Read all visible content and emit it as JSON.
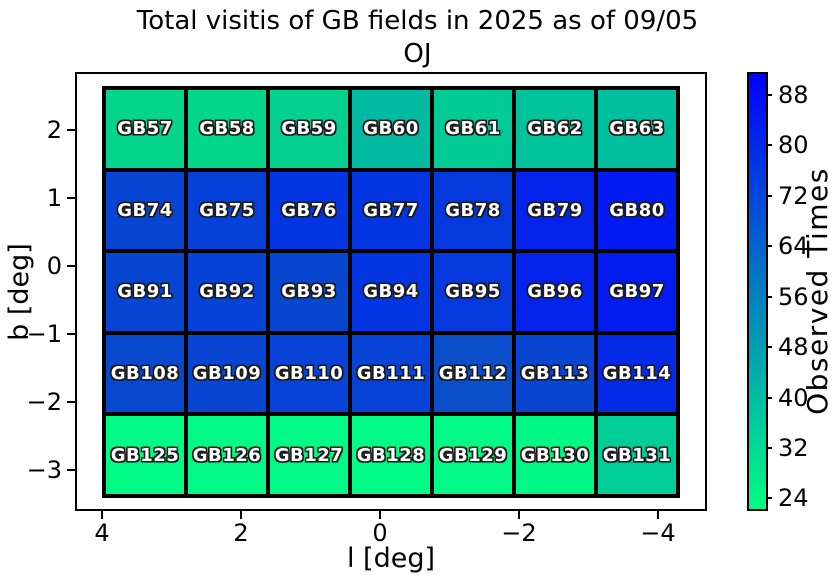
{
  "title": {
    "line1": "Total visitis of GB fields in 2025 as of 09/05",
    "line2": "OJ"
  },
  "axes": {
    "xlabel": "l [deg]",
    "ylabel": "b [deg]",
    "xticks": [
      "4",
      "2",
      "0",
      "−2",
      "−4"
    ],
    "yticks": [
      "2",
      "1",
      "0",
      "−1",
      "−2",
      "−3"
    ]
  },
  "colorbar": {
    "label": "Observed Times",
    "ticks": [
      "88",
      "80",
      "72",
      "64",
      "56",
      "48",
      "40",
      "32",
      "24"
    ],
    "top_color": "#0000fe",
    "bottom_color": "#00fd83"
  },
  "chart_data": {
    "type": "heatmap",
    "title": "Total visitis of GB fields in 2025 as of 09/05 OJ",
    "xlabel": "l [deg]",
    "ylabel": "b [deg]",
    "x_axis_inverted": true,
    "xlim": [
      4.4,
      -4.3
    ],
    "ylim": [
      -3.4,
      2.65
    ],
    "colorbar_label": "Observed Times",
    "colorbar_tick_values": [
      88,
      80,
      72,
      64,
      56,
      48,
      40,
      32,
      24
    ],
    "colorbar_range": [
      22,
      92
    ],
    "colormap": "green-to-blue (low=green #00fd83, high=blue #0000fe)",
    "rows": [
      {
        "b_center": 2.0,
        "fields": [
          {
            "label": "GB57",
            "value": 32,
            "color": "#03d58d"
          },
          {
            "label": "GB58",
            "value": 31,
            "color": "#02d78c"
          },
          {
            "label": "GB59",
            "value": 33,
            "color": "#04d190"
          },
          {
            "label": "GB60",
            "value": 41,
            "color": "#00bba2"
          },
          {
            "label": "GB61",
            "value": 35,
            "color": "#01cb94"
          },
          {
            "label": "GB62",
            "value": 38,
            "color": "#00c29b"
          },
          {
            "label": "GB63",
            "value": 39,
            "color": "#00bf9e"
          }
        ]
      },
      {
        "b_center": 0.8,
        "fields": [
          {
            "label": "GB74",
            "value": 73,
            "color": "#0646d3"
          },
          {
            "label": "GB75",
            "value": 75,
            "color": "#0540d8"
          },
          {
            "label": "GB76",
            "value": 78,
            "color": "#0435e2"
          },
          {
            "label": "GB77",
            "value": 78,
            "color": "#0435e2"
          },
          {
            "label": "GB78",
            "value": 76,
            "color": "#0539de"
          },
          {
            "label": "GB79",
            "value": 84,
            "color": "#0322ec"
          },
          {
            "label": "GB80",
            "value": 88,
            "color": "#021af2"
          }
        ]
      },
      {
        "b_center": -0.4,
        "fields": [
          {
            "label": "GB91",
            "value": 73,
            "color": "#0646d3"
          },
          {
            "label": "GB92",
            "value": 74,
            "color": "#0542d7"
          },
          {
            "label": "GB93",
            "value": 72,
            "color": "#0747d0"
          },
          {
            "label": "GB94",
            "value": 78,
            "color": "#0435e2"
          },
          {
            "label": "GB95",
            "value": 76,
            "color": "#0539de"
          },
          {
            "label": "GB96",
            "value": 84,
            "color": "#0322ec"
          },
          {
            "label": "GB97",
            "value": 86,
            "color": "#021cf0"
          }
        ]
      },
      {
        "b_center": -1.6,
        "fields": [
          {
            "label": "GB108",
            "value": 71,
            "color": "#0848ce"
          },
          {
            "label": "GB109",
            "value": 72,
            "color": "#0745d2"
          },
          {
            "label": "GB110",
            "value": 73,
            "color": "#0643d6"
          },
          {
            "label": "GB111",
            "value": 73,
            "color": "#0643d6"
          },
          {
            "label": "GB112",
            "value": 69,
            "color": "#0a4ec9"
          },
          {
            "label": "GB113",
            "value": 72,
            "color": "#0745d2"
          },
          {
            "label": "GB114",
            "value": 81,
            "color": "#0429e7"
          }
        ]
      },
      {
        "b_center": -2.8,
        "fields": [
          {
            "label": "GB125",
            "value": 23,
            "color": "#00fb85"
          },
          {
            "label": "GB126",
            "value": 23,
            "color": "#00fa85"
          },
          {
            "label": "GB127",
            "value": 23,
            "color": "#00fa85"
          },
          {
            "label": "GB128",
            "value": 23,
            "color": "#00fb85"
          },
          {
            "label": "GB129",
            "value": 23,
            "color": "#00fa85"
          },
          {
            "label": "GB130",
            "value": 24,
            "color": "#00f985"
          },
          {
            "label": "GB131",
            "value": 36,
            "color": "#00ce96"
          }
        ]
      }
    ]
  }
}
